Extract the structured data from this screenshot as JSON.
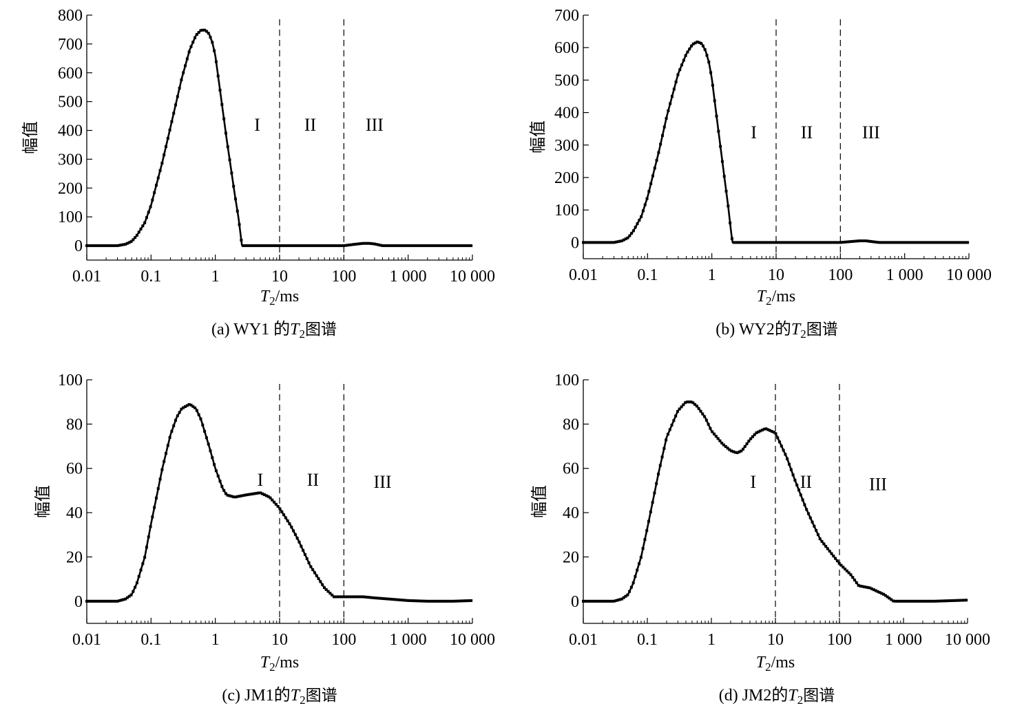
{
  "chart_data": [
    {
      "id": "a",
      "type": "line",
      "caption": "(a) WY1 的T₂图谱",
      "caption_parts": {
        "prefix": "(a) WY1 的",
        "var": "T",
        "sub": "2",
        "suffix": "图谱"
      },
      "xlabel": {
        "var": "T",
        "sub": "2",
        "unit": "/ms"
      },
      "ylabel": "幅值",
      "xscale": "log",
      "xlim": [
        0.01,
        10000
      ],
      "ylim": [
        -50,
        800
      ],
      "xticks": [
        0.01,
        0.1,
        1,
        10,
        100,
        1000,
        10000
      ],
      "xtick_labels": [
        "0.01",
        "0.1",
        "1",
        "10",
        "100",
        "1 000",
        "10 000"
      ],
      "yticks": [
        0,
        100,
        200,
        300,
        400,
        500,
        600,
        700,
        800
      ],
      "ytick_labels": [
        "0",
        "100",
        "200",
        "300",
        "400",
        "500",
        "600",
        "700",
        "800"
      ],
      "dividers": [
        10,
        100
      ],
      "regions": [
        {
          "label": "I",
          "x": 4.5,
          "y": 420
        },
        {
          "label": "II",
          "x": 30,
          "y": 420
        },
        {
          "label": "III",
          "x": 300,
          "y": 420
        }
      ],
      "series": [
        {
          "x": [
            0.01,
            0.02,
            0.03,
            0.04,
            0.05,
            0.06,
            0.08,
            0.1,
            0.15,
            0.2,
            0.3,
            0.4,
            0.5,
            0.6,
            0.7,
            0.8,
            0.9,
            1.0,
            1.2,
            1.5,
            1.8,
            2.0,
            2.3,
            2.5,
            2.6,
            5,
            10,
            50,
            100,
            150,
            200,
            250,
            300,
            400,
            1000,
            10000
          ],
          "y": [
            0,
            0,
            0,
            5,
            15,
            35,
            80,
            140,
            290,
            410,
            580,
            680,
            730,
            748,
            748,
            735,
            705,
            660,
            530,
            370,
            250,
            180,
            95,
            30,
            0,
            0,
            0,
            0,
            0,
            5,
            8,
            8,
            6,
            0,
            0,
            0
          ]
        }
      ]
    },
    {
      "id": "b",
      "type": "line",
      "caption": "(b) WY2的T₂图谱",
      "caption_parts": {
        "prefix": "(b) WY2的",
        "var": "T",
        "sub": "2",
        "suffix": "图谱"
      },
      "xlabel": {
        "var": "T",
        "sub": "2",
        "unit": "/ms"
      },
      "ylabel": "幅值",
      "xscale": "log",
      "xlim": [
        0.01,
        10000
      ],
      "ylim": [
        -50,
        700
      ],
      "xticks": [
        0.01,
        0.1,
        1,
        10,
        100,
        1000,
        10000
      ],
      "xtick_labels": [
        "0.01",
        "0.1",
        "1",
        "10",
        "100",
        "1 000",
        "10 000"
      ],
      "yticks": [
        0,
        100,
        200,
        300,
        400,
        500,
        600,
        700
      ],
      "ytick_labels": [
        "0",
        "100",
        "200",
        "300",
        "400",
        "500",
        "600",
        "700"
      ],
      "dividers": [
        10,
        100
      ],
      "regions": [
        {
          "label": "I",
          "x": 4.5,
          "y": 340
        },
        {
          "label": "II",
          "x": 30,
          "y": 340
        },
        {
          "label": "III",
          "x": 300,
          "y": 340
        }
      ],
      "series": [
        {
          "x": [
            0.01,
            0.02,
            0.03,
            0.04,
            0.05,
            0.06,
            0.08,
            0.1,
            0.15,
            0.2,
            0.3,
            0.4,
            0.5,
            0.6,
            0.7,
            0.8,
            0.9,
            1.0,
            1.2,
            1.5,
            1.8,
            2.0,
            2.1,
            5,
            10,
            50,
            100,
            150,
            200,
            250,
            300,
            400,
            1000,
            10000
          ],
          "y": [
            0,
            0,
            0,
            5,
            15,
            35,
            80,
            140,
            280,
            390,
            520,
            580,
            610,
            618,
            612,
            590,
            555,
            505,
            380,
            230,
            110,
            30,
            0,
            0,
            0,
            0,
            0,
            3,
            5,
            5,
            3,
            0,
            0,
            0
          ]
        }
      ]
    },
    {
      "id": "c",
      "type": "line",
      "caption": "(c) JM1的T₂图谱",
      "caption_parts": {
        "prefix": "(c) JM1的",
        "var": "T",
        "sub": "2",
        "suffix": "图谱"
      },
      "xlabel": {
        "var": "T",
        "sub": "2",
        "unit": "/ms"
      },
      "ylabel": "幅值",
      "xscale": "log",
      "xlim": [
        0.01,
        10000
      ],
      "ylim": [
        -10,
        100
      ],
      "xticks": [
        0.01,
        0.1,
        1,
        10,
        100,
        1000,
        10000
      ],
      "xtick_labels": [
        "0.01",
        "0.1",
        "1",
        "10",
        "100",
        "1 000",
        "10 000"
      ],
      "yticks": [
        0,
        20,
        40,
        60,
        80,
        100
      ],
      "ytick_labels": [
        "0",
        "20",
        "40",
        "60",
        "80",
        "100"
      ],
      "dividers": [
        10,
        100
      ],
      "regions": [
        {
          "label": "I",
          "x": 5,
          "y": 55
        },
        {
          "label": "II",
          "x": 33,
          "y": 55
        },
        {
          "label": "III",
          "x": 400,
          "y": 54
        }
      ],
      "series": [
        {
          "x": [
            0.01,
            0.02,
            0.03,
            0.04,
            0.05,
            0.06,
            0.08,
            0.1,
            0.15,
            0.2,
            0.25,
            0.3,
            0.4,
            0.5,
            0.6,
            0.8,
            1.0,
            1.3,
            1.5,
            2,
            3,
            5,
            7,
            10,
            15,
            20,
            30,
            50,
            70,
            100,
            200,
            300,
            500,
            1000,
            2000,
            5000,
            10000
          ],
          "y": [
            0,
            0,
            0,
            1,
            3,
            8,
            20,
            35,
            60,
            75,
            83,
            87,
            89,
            87,
            82,
            70,
            60,
            51,
            48,
            47,
            48,
            49,
            47,
            42,
            34,
            27,
            16,
            6,
            2,
            2,
            2,
            1.5,
            1,
            0.3,
            0,
            0,
            0.3
          ]
        }
      ]
    },
    {
      "id": "d",
      "type": "line",
      "caption": "(d) JM2的T₂图谱",
      "caption_parts": {
        "prefix": "(d) JM2的",
        "var": "T",
        "sub": "2",
        "suffix": "图谱"
      },
      "xlabel": {
        "var": "T",
        "sub": "2",
        "unit": "/ms"
      },
      "ylabel": "幅值",
      "xscale": "log",
      "xlim": [
        0.01,
        10000
      ],
      "ylim": [
        -10,
        100
      ],
      "xticks": [
        0.01,
        0.1,
        1,
        10,
        100,
        1000,
        10000
      ],
      "xtick_labels": [
        "0.01",
        "0.1",
        "1",
        "10",
        "100",
        "1 000",
        "10 000"
      ],
      "yticks": [
        0,
        20,
        40,
        60,
        80,
        100
      ],
      "ytick_labels": [
        "0",
        "20",
        "40",
        "60",
        "80",
        "100"
      ],
      "dividers": [
        10,
        100
      ],
      "regions": [
        {
          "label": "I",
          "x": 4.5,
          "y": 54
        },
        {
          "label": "II",
          "x": 30,
          "y": 54
        },
        {
          "label": "III",
          "x": 400,
          "y": 53
        }
      ],
      "series": [
        {
          "x": [
            0.01,
            0.02,
            0.03,
            0.04,
            0.05,
            0.06,
            0.08,
            0.1,
            0.15,
            0.2,
            0.3,
            0.4,
            0.5,
            0.6,
            0.8,
            1.0,
            1.5,
            2,
            2.5,
            3,
            4,
            5,
            7,
            10,
            15,
            20,
            30,
            50,
            100,
            150,
            200,
            300,
            500,
            700,
            1000,
            3000,
            10000
          ],
          "y": [
            0,
            0,
            0,
            1,
            3,
            8,
            20,
            33,
            58,
            74,
            86,
            90,
            90,
            88,
            83,
            77,
            71,
            68,
            67,
            68,
            73,
            76,
            78,
            76,
            65,
            55,
            42,
            28,
            17,
            12,
            7,
            6,
            3,
            0,
            0,
            0,
            0.5
          ]
        }
      ]
    }
  ]
}
